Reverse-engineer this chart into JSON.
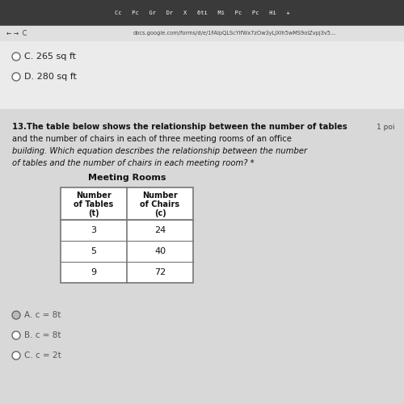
{
  "bg_color": "#c8c8c8",
  "top_section_bg": "#ebebeb",
  "bottom_section_bg": "#d8d8d8",
  "browser_bar_color": "#3a3a3a",
  "addr_bar_bg": "#e0e0e0",
  "question_number": "13.",
  "q_line1": "The table below shows the relationship between the number of tables",
  "q_line2": "and the number of chairs in each of three meeting rooms of an office",
  "q_line3": "building. Which equation describes the relationship between the number",
  "q_line4": "of tables and the number of chairs in each meeting room? *",
  "point_label": "1 poi",
  "prev_option_c": "C. 265 sq ft",
  "prev_option_d": "D. 280 sq ft",
  "table_title": "Meeting Rooms",
  "col1_h1": "Number",
  "col1_h2": "of Tables",
  "col1_h3": "(t)",
  "col2_h1": "Number",
  "col2_h2": "of Chairs",
  "col2_h3": "(c)",
  "table_rows": [
    [
      "3",
      "24"
    ],
    [
      "5",
      "40"
    ],
    [
      "9",
      "72"
    ]
  ],
  "ans_a": "A. c = 8t",
  "ans_b": "B. c = 8t",
  "ans_c": "C. c = 2t",
  "url": "docs.google.com/forms/d/e/1FAlpQLScYifWx7zOw3yLJXlh5wMS9olZvpj3v5...",
  "tab_icons": "Cc   Pc   Gr   Dr   X   6ti   Mi   Pc   Pc   Hi   +",
  "text_col": "#111111",
  "border_col": "#777777"
}
